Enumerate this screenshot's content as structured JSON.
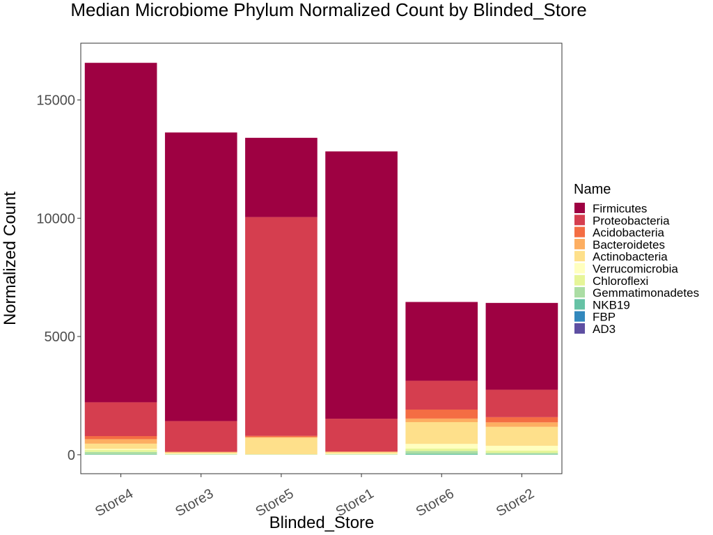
{
  "chart_data": {
    "type": "bar",
    "stacked": true,
    "title": "Median Microbiome Phylum Normalized Count by Blinded_Store",
    "xlabel": "Blinded_Store",
    "ylabel": "Normalized Count",
    "ylim": [
      -800,
      17400
    ],
    "yticks": [
      0,
      5000,
      10000,
      15000
    ],
    "categories": [
      "Store4",
      "Store3",
      "Store5",
      "Store1",
      "Store6",
      "Store2"
    ],
    "legend": {
      "title": "Name",
      "position": "right"
    },
    "grid": false,
    "series": [
      {
        "name": "AD3",
        "color": "#5E4FA2",
        "values": [
          0,
          0,
          0,
          0,
          0,
          0
        ]
      },
      {
        "name": "FBP",
        "color": "#3288BD",
        "values": [
          0,
          0,
          0,
          0,
          0,
          0
        ]
      },
      {
        "name": "NKB19",
        "color": "#66C2A5",
        "values": [
          20,
          0,
          0,
          0,
          40,
          20
        ]
      },
      {
        "name": "Gemmatimonadetes",
        "color": "#ABDDA4",
        "values": [
          100,
          20,
          10,
          20,
          120,
          60
        ]
      },
      {
        "name": "Chloroflexi",
        "color": "#E6F598",
        "values": [
          80,
          10,
          5,
          10,
          100,
          100
        ]
      },
      {
        "name": "Verrucomicrobia",
        "color": "#FFFFBF",
        "values": [
          50,
          20,
          5,
          20,
          200,
          200
        ]
      },
      {
        "name": "Actinobacteria",
        "color": "#FEE08B",
        "values": [
          220,
          50,
          700,
          60,
          920,
          800
        ]
      },
      {
        "name": "Bacteroidetes",
        "color": "#FDAE61",
        "values": [
          190,
          20,
          30,
          20,
          150,
          190
        ]
      },
      {
        "name": "Acidobacteria",
        "color": "#F46D43",
        "values": [
          130,
          5,
          50,
          5,
          380,
          220
        ]
      },
      {
        "name": "Proteobacteria",
        "color": "#D53E4F",
        "values": [
          1430,
          1300,
          9250,
          1390,
          1220,
          1160
        ]
      },
      {
        "name": "Firmicutes",
        "color": "#9E0142",
        "values": [
          14350,
          12200,
          3350,
          11300,
          3330,
          3670
        ]
      }
    ]
  }
}
